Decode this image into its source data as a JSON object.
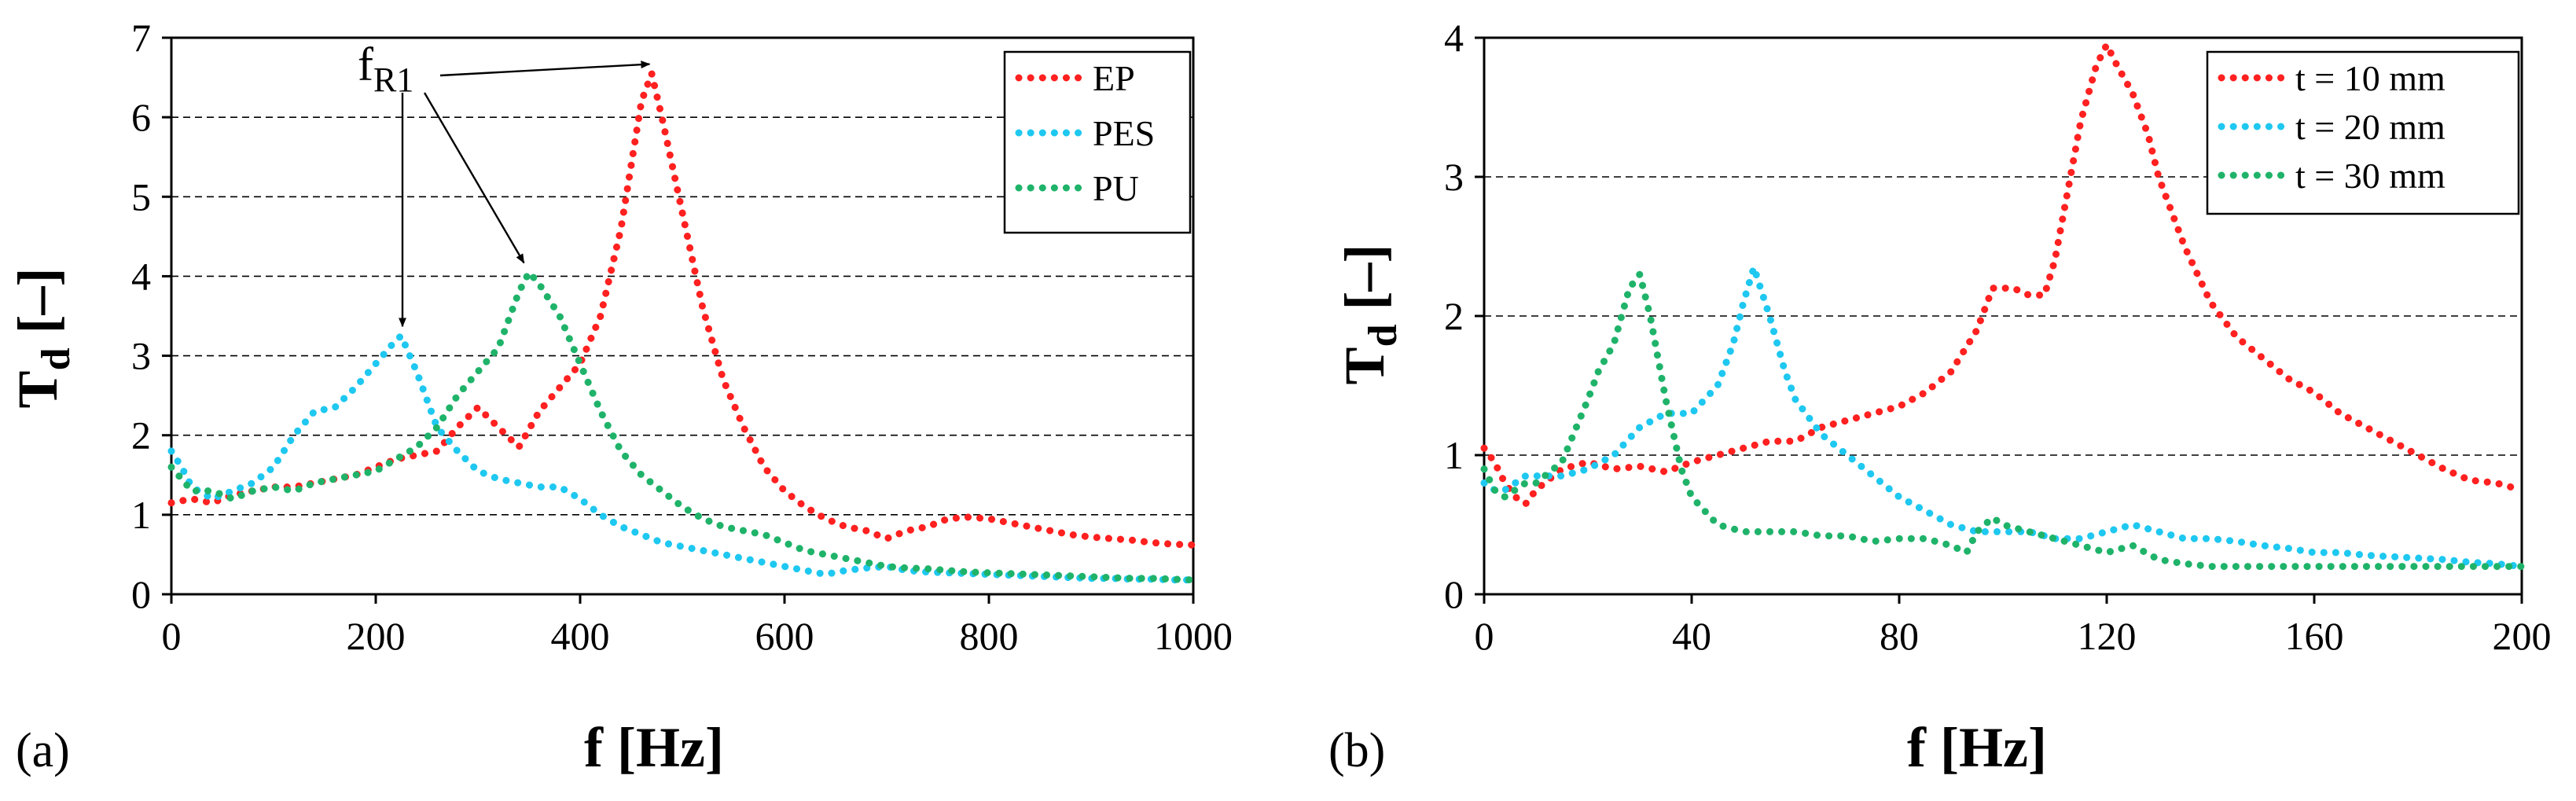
{
  "colors": {
    "red": "#ff2020",
    "blue": "#1ec8f0",
    "green": "#1fb36a"
  },
  "chart_data": [
    {
      "type": "line",
      "panel_label": "(a)",
      "xlabel": "f [Hz]",
      "ylabel_main": "T",
      "ylabel_sub": "d",
      "ylabel_unit": " [–]",
      "xlim": [
        0,
        1000
      ],
      "ylim": [
        0,
        7
      ],
      "xticks": [
        0,
        200,
        400,
        600,
        800,
        1000
      ],
      "yticks": [
        0,
        1,
        2,
        3,
        4,
        5,
        6,
        7
      ],
      "grid": "horizontal dashed",
      "legend_position": "top-right",
      "annotation": {
        "text_main": "f",
        "text_sub": "R1",
        "targets": [
          [
            468,
            6.55
          ],
          [
            225,
            3.25
          ],
          [
            345,
            4.05
          ]
        ]
      },
      "series": [
        {
          "name": "EP",
          "color": "red",
          "x": [
            0,
            20,
            40,
            60,
            80,
            100,
            120,
            140,
            160,
            180,
            200,
            220,
            240,
            260,
            280,
            300,
            320,
            340,
            360,
            380,
            400,
            420,
            440,
            460,
            470,
            480,
            500,
            520,
            540,
            560,
            580,
            600,
            620,
            640,
            660,
            680,
            700,
            720,
            740,
            760,
            780,
            800,
            820,
            840,
            860,
            880,
            900,
            920,
            940,
            960,
            980,
            1000
          ],
          "y": [
            1.15,
            1.2,
            1.15,
            1.25,
            1.3,
            1.35,
            1.35,
            1.4,
            1.45,
            1.5,
            1.6,
            1.7,
            1.75,
            1.8,
            2.1,
            2.35,
            2.1,
            1.85,
            2.3,
            2.6,
            2.9,
            3.5,
            4.6,
            6.2,
            6.55,
            6.0,
            4.8,
            3.6,
            2.7,
            2.1,
            1.6,
            1.3,
            1.1,
            0.95,
            0.85,
            0.8,
            0.7,
            0.8,
            0.85,
            0.95,
            0.97,
            0.95,
            0.9,
            0.85,
            0.8,
            0.75,
            0.72,
            0.7,
            0.68,
            0.65,
            0.63,
            0.62
          ]
        },
        {
          "name": "PES",
          "color": "blue",
          "x": [
            0,
            10,
            20,
            40,
            60,
            80,
            100,
            120,
            140,
            160,
            180,
            200,
            210,
            220,
            225,
            240,
            260,
            280,
            300,
            320,
            340,
            360,
            380,
            400,
            420,
            440,
            460,
            480,
            500,
            520,
            540,
            560,
            580,
            600,
            620,
            640,
            660,
            680,
            700,
            720,
            740,
            760,
            780,
            800,
            820,
            840,
            860,
            880,
            900,
            920,
            940,
            960,
            980,
            1000
          ],
          "y": [
            1.8,
            1.6,
            1.35,
            1.2,
            1.3,
            1.4,
            1.6,
            2.0,
            2.3,
            2.35,
            2.6,
            2.9,
            3.05,
            3.2,
            3.25,
            2.8,
            2.1,
            1.8,
            1.55,
            1.45,
            1.4,
            1.35,
            1.35,
            1.2,
            1.0,
            0.85,
            0.75,
            0.65,
            0.6,
            0.55,
            0.5,
            0.45,
            0.4,
            0.35,
            0.3,
            0.25,
            0.3,
            0.33,
            0.35,
            0.3,
            0.28,
            0.27,
            0.26,
            0.25,
            0.24,
            0.23,
            0.22,
            0.21,
            0.2,
            0.2,
            0.19,
            0.19,
            0.18,
            0.18
          ]
        },
        {
          "name": "PU",
          "color": "green",
          "x": [
            0,
            20,
            40,
            60,
            80,
            100,
            120,
            140,
            160,
            180,
            200,
            220,
            240,
            260,
            280,
            300,
            320,
            340,
            350,
            360,
            380,
            400,
            420,
            440,
            460,
            480,
            500,
            520,
            540,
            560,
            580,
            600,
            620,
            640,
            660,
            680,
            700,
            720,
            740,
            760,
            780,
            800,
            820,
            840,
            860,
            880,
            900,
            920,
            940,
            960,
            980,
            1000
          ],
          "y": [
            1.6,
            1.3,
            1.3,
            1.2,
            1.3,
            1.35,
            1.3,
            1.4,
            1.45,
            1.5,
            1.55,
            1.7,
            1.85,
            2.1,
            2.5,
            2.8,
            3.1,
            3.8,
            4.05,
            3.9,
            3.5,
            2.9,
            2.3,
            1.8,
            1.5,
            1.3,
            1.1,
            0.95,
            0.85,
            0.8,
            0.75,
            0.65,
            0.55,
            0.5,
            0.45,
            0.4,
            0.35,
            0.33,
            0.32,
            0.3,
            0.28,
            0.27,
            0.26,
            0.25,
            0.24,
            0.23,
            0.22,
            0.21,
            0.2,
            0.2,
            0.19,
            0.18
          ]
        }
      ]
    },
    {
      "type": "line",
      "panel_label": "(b)",
      "xlabel": "f [Hz]",
      "ylabel_main": "T",
      "ylabel_sub": "d",
      "ylabel_unit": " [–]",
      "xlim": [
        0,
        200
      ],
      "ylim": [
        0,
        4
      ],
      "xticks": [
        0,
        40,
        80,
        120,
        160,
        200
      ],
      "yticks": [
        0,
        1,
        2,
        3,
        4
      ],
      "grid": "horizontal dashed",
      "legend_position": "top-right",
      "series": [
        {
          "name": "t = 10 mm",
          "color": "red",
          "x": [
            0,
            2,
            4,
            6,
            8,
            10,
            15,
            20,
            25,
            30,
            35,
            40,
            45,
            50,
            55,
            60,
            65,
            70,
            75,
            80,
            85,
            90,
            95,
            98,
            100,
            102,
            105,
            108,
            110,
            112,
            115,
            118,
            120,
            122,
            125,
            128,
            130,
            135,
            140,
            145,
            150,
            155,
            160,
            165,
            170,
            175,
            180,
            185,
            190,
            195,
            200
          ],
          "y": [
            1.05,
            0.95,
            0.8,
            0.7,
            0.65,
            0.75,
            0.9,
            0.95,
            0.9,
            0.92,
            0.88,
            0.95,
            1.0,
            1.05,
            1.1,
            1.1,
            1.2,
            1.25,
            1.3,
            1.35,
            1.45,
            1.6,
            1.9,
            2.2,
            2.2,
            2.2,
            2.15,
            2.15,
            2.4,
            2.8,
            3.4,
            3.8,
            3.95,
            3.8,
            3.6,
            3.3,
            3.0,
            2.5,
            2.1,
            1.85,
            1.7,
            1.55,
            1.45,
            1.3,
            1.2,
            1.1,
            1.0,
            0.9,
            0.82,
            0.8,
            0.75
          ]
        },
        {
          "name": "t = 20 mm",
          "color": "blue",
          "x": [
            0,
            2,
            4,
            6,
            8,
            10,
            15,
            20,
            25,
            30,
            35,
            40,
            45,
            48,
            50,
            52,
            55,
            58,
            60,
            65,
            70,
            75,
            80,
            85,
            90,
            95,
            100,
            105,
            110,
            115,
            120,
            125,
            130,
            135,
            140,
            145,
            150,
            155,
            160,
            165,
            170,
            175,
            180,
            185,
            190,
            195,
            200
          ],
          "y": [
            0.8,
            0.75,
            0.75,
            0.8,
            0.85,
            0.85,
            0.85,
            0.9,
            1.0,
            1.2,
            1.3,
            1.3,
            1.5,
            1.8,
            2.1,
            2.35,
            2.0,
            1.6,
            1.4,
            1.15,
            1.0,
            0.85,
            0.7,
            0.6,
            0.5,
            0.45,
            0.45,
            0.45,
            0.4,
            0.4,
            0.45,
            0.5,
            0.45,
            0.4,
            0.4,
            0.38,
            0.35,
            0.33,
            0.3,
            0.3,
            0.28,
            0.27,
            0.26,
            0.25,
            0.23,
            0.22,
            0.2
          ]
        },
        {
          "name": "t = 30 mm",
          "color": "green",
          "x": [
            0,
            2,
            4,
            6,
            8,
            10,
            15,
            20,
            22,
            25,
            28,
            30,
            32,
            35,
            38,
            40,
            45,
            50,
            55,
            60,
            65,
            70,
            75,
            80,
            85,
            90,
            93,
            95,
            98,
            100,
            105,
            110,
            115,
            120,
            125,
            130,
            135,
            140,
            145,
            150,
            155,
            160,
            165,
            170,
            175,
            180,
            185,
            190,
            195,
            200
          ],
          "y": [
            0.9,
            0.75,
            0.7,
            0.75,
            0.8,
            0.8,
            0.95,
            1.4,
            1.6,
            1.8,
            2.2,
            2.3,
            2.0,
            1.4,
            0.9,
            0.7,
            0.5,
            0.45,
            0.45,
            0.45,
            0.42,
            0.42,
            0.38,
            0.4,
            0.4,
            0.35,
            0.3,
            0.45,
            0.55,
            0.5,
            0.45,
            0.4,
            0.35,
            0.3,
            0.35,
            0.25,
            0.22,
            0.2,
            0.2,
            0.2,
            0.2,
            0.2,
            0.2,
            0.2,
            0.2,
            0.2,
            0.2,
            0.2,
            0.2,
            0.2
          ]
        }
      ]
    }
  ]
}
